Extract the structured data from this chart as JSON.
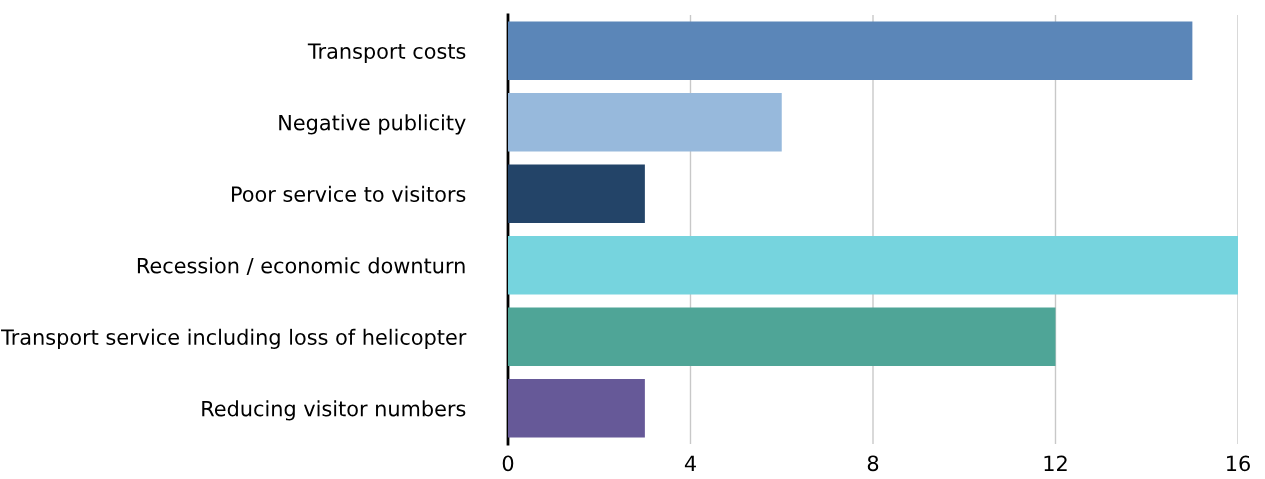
{
  "chart_data": {
    "type": "bar",
    "orientation": "horizontal",
    "categories": [
      "Transport costs",
      "Negative publicity",
      "Poor service to visitors",
      "Recession / economic downturn",
      "Transport service including loss of helicopter",
      "Reducing visitor numbers"
    ],
    "values": [
      15,
      6,
      3,
      16,
      12,
      3
    ],
    "colors": [
      "#5b86b8",
      "#97b9dc",
      "#234468",
      "#76d4de",
      "#4fa597",
      "#665998"
    ],
    "xlim": [
      0,
      16
    ],
    "xticks": [
      0,
      4,
      8,
      12,
      16
    ],
    "grid": "x"
  }
}
